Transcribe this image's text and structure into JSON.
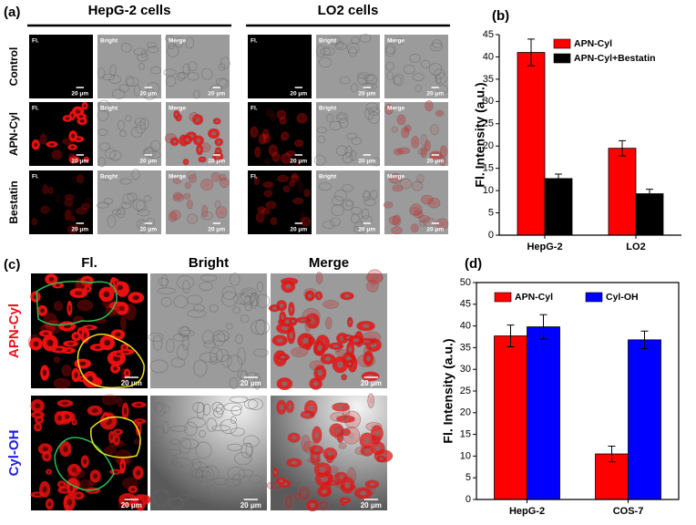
{
  "panel_a": {
    "label": "(a)",
    "groups": [
      "HepG-2 cells",
      "LO2 cells"
    ],
    "rows": [
      "Control",
      "APN-Cyl",
      "Bestatin"
    ],
    "columns": [
      "Fl.",
      "Bright",
      "Merge"
    ],
    "scale_bar": "20 μm"
  },
  "panel_c": {
    "label": "(c)",
    "columns": [
      "Fl.",
      "Bright",
      "Merge"
    ],
    "rows": [
      {
        "name": "APN-Cyl",
        "color": "#e8141b"
      },
      {
        "name": "Cyl-OH",
        "color": "#1c1ce0"
      }
    ],
    "scale_bar": "20 μm"
  },
  "chart_data": [
    {
      "type": "bar",
      "panel_label": "(b)",
      "ylabel": "Fl. Intensity (a.u.)",
      "categories": [
        "HepG-2",
        "LO2"
      ],
      "series": [
        {
          "name": "APN-Cyl",
          "color": "#ff0000",
          "values": [
            41,
            19.5
          ],
          "errors": [
            3,
            1.7
          ]
        },
        {
          "name": "APN-Cyl+Bestatin",
          "color": "#000000",
          "values": [
            12.7,
            9.3
          ],
          "errors": [
            1,
            1
          ]
        }
      ],
      "ylim": [
        0,
        45
      ],
      "yticks": [
        0,
        5,
        10,
        15,
        20,
        25,
        30,
        35,
        40,
        45
      ],
      "legend": "upper right"
    },
    {
      "type": "bar",
      "panel_label": "(d)",
      "ylabel": "Fl. Intensity (a.u.)",
      "categories": [
        "HepG-2",
        "COS-7"
      ],
      "series": [
        {
          "name": "APN-Cyl",
          "color": "#ff0000",
          "values": [
            37.7,
            10.5
          ],
          "errors": [
            2.5,
            1.8
          ]
        },
        {
          "name": "Cyl-OH",
          "color": "#0000ff",
          "values": [
            39.8,
            36.8
          ],
          "errors": [
            2.8,
            2
          ]
        }
      ],
      "ylim": [
        0,
        50
      ],
      "yticks": [
        0,
        5,
        10,
        15,
        20,
        25,
        30,
        35,
        40,
        45,
        50
      ],
      "legend": "upper center"
    }
  ]
}
